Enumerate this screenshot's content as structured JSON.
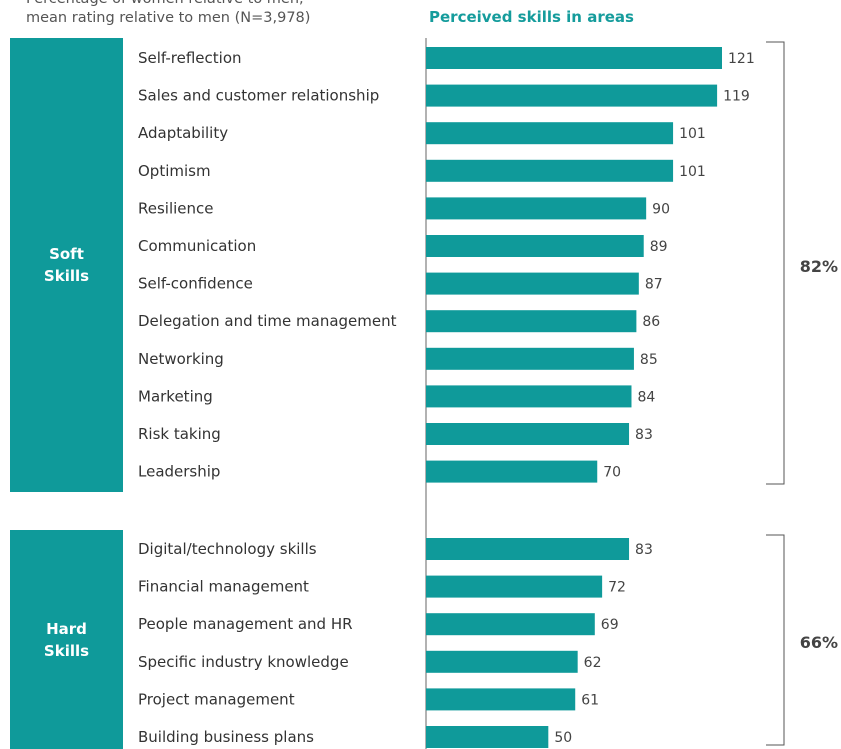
{
  "subtitle": {
    "line1": "Percentage of women relative to men,",
    "line2": "mean rating relative to men (N=3,978)"
  },
  "header": "Perceived skills in areas",
  "groups": [
    {
      "name_line1": "Soft",
      "name_line2": "Skills",
      "percent": "82%"
    },
    {
      "name_line1": "Hard",
      "name_line2": "Skills",
      "percent": "66%"
    }
  ],
  "colors": {
    "bar": "#0f9a9a",
    "box": "#0f9a9a",
    "header": "#159c9c"
  },
  "chart_data": {
    "type": "bar",
    "orientation": "horizontal",
    "title": "Perceived skills in areas",
    "groups": [
      {
        "name": "Soft Skills",
        "categories": [
          "Self-reflection",
          "Sales and customer relationship",
          "Adaptability",
          "Optimism",
          "Resilience",
          "Communication",
          "Self-confidence",
          "Delegation and time management",
          "Networking",
          "Marketing",
          "Risk taking",
          "Leadership"
        ],
        "values": [
          121,
          119,
          101,
          101,
          90,
          89,
          87,
          86,
          85,
          84,
          83,
          70
        ],
        "bracket_label": "82%"
      },
      {
        "name": "Hard Skills",
        "categories": [
          "Digital/technology skills",
          "Financial management",
          "People management and HR",
          "Specific industry knowledge",
          "Project management",
          "Building business plans"
        ],
        "values": [
          83,
          72,
          69,
          62,
          61,
          50
        ],
        "bracket_label": "66%"
      }
    ]
  }
}
